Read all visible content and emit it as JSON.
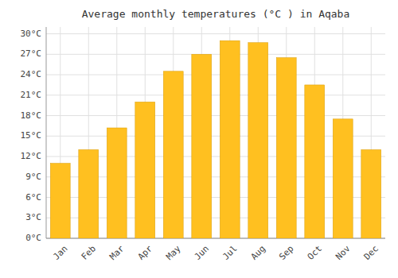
{
  "chart_data": {
    "type": "bar",
    "title": "Average monthly temperatures (°C ) in Aqaba",
    "categories": [
      "Jan",
      "Feb",
      "Mar",
      "Apr",
      "May",
      "Jun",
      "Jul",
      "Aug",
      "Sep",
      "Oct",
      "Nov",
      "Dec"
    ],
    "values": [
      11.0,
      13.0,
      16.2,
      20.0,
      24.5,
      27.0,
      29.0,
      28.7,
      26.5,
      22.5,
      17.5,
      13.0
    ],
    "color": "#FFC020",
    "ylim": [
      0,
      31
    ],
    "yticks": [
      {
        "value": 0,
        "label": "0°C"
      },
      {
        "value": 3,
        "label": "3°C"
      },
      {
        "value": 6,
        "label": "6°C"
      },
      {
        "value": 9,
        "label": "9°C"
      },
      {
        "value": 12,
        "label": "12°C"
      },
      {
        "value": 15,
        "label": "15°C"
      },
      {
        "value": 18,
        "label": "18°C"
      },
      {
        "value": 21,
        "label": "21°C"
      },
      {
        "value": 24,
        "label": "24°C"
      },
      {
        "value": 27,
        "label": "27°C"
      },
      {
        "value": 30,
        "label": "30°C"
      }
    ],
    "grid": true
  }
}
